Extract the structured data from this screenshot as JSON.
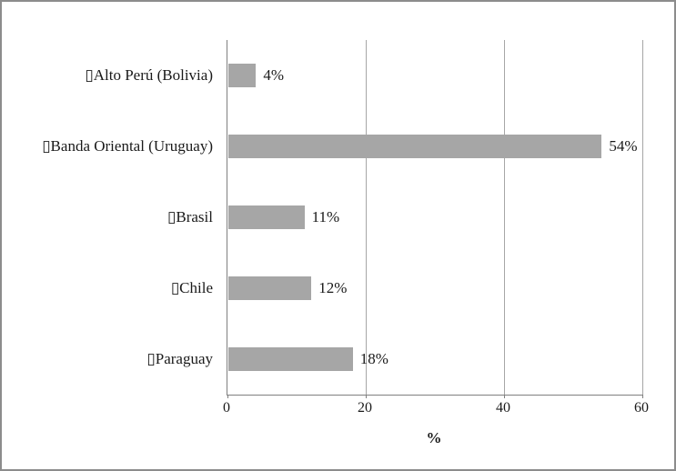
{
  "chart_data": {
    "type": "bar",
    "orientation": "horizontal",
    "title": "",
    "categories": [
      "Alto Perú (Bolivia)",
      "Banda Oriental (Uruguay)",
      "Brasil",
      "Chile",
      "Paraguay"
    ],
    "values": [
      4,
      54,
      11,
      12,
      18
    ],
    "value_labels": [
      "4%",
      "54%",
      "11%",
      "12%",
      "18%"
    ],
    "category_prefix_glyph": "▯",
    "xlabel": "%",
    "xlim": [
      0,
      60
    ],
    "xticks": [
      0,
      20,
      40,
      60
    ],
    "xtick_labels": [
      "0",
      "20",
      "40",
      "60"
    ],
    "grid": "vertical",
    "legend_position": "none",
    "colors": {
      "bar": "#a6a6a6",
      "gridline": "#a6a6a6",
      "axis": "#808080",
      "text": "#1a1a1a",
      "frame_border": "#8c8c8c"
    }
  }
}
